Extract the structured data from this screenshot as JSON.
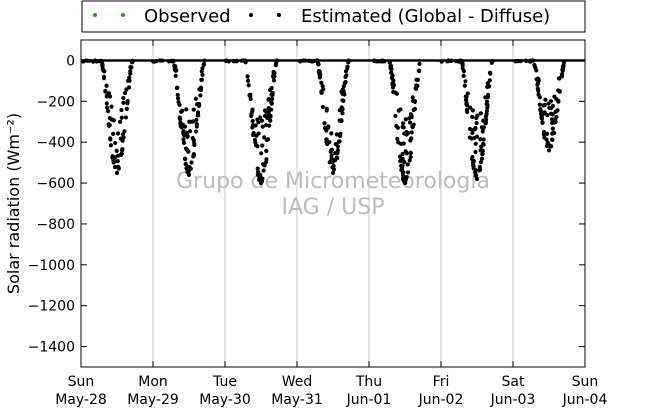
{
  "chart_data": {
    "type": "scatter",
    "ylabel": "Solar radiation (Wm⁻²)",
    "ylim": [
      -1500,
      100
    ],
    "yticks": [
      0,
      -200,
      -400,
      -600,
      -800,
      -1000,
      -1200,
      -1400
    ],
    "xlim": [
      "2017-05-28",
      "2017-06-04"
    ],
    "xtick_labels": [
      [
        "Sun",
        "May-28"
      ],
      [
        "Mon",
        "May-29"
      ],
      [
        "Tue",
        "May-30"
      ],
      [
        "Wed",
        "May-31"
      ],
      [
        "Thu",
        "Jun-01"
      ],
      [
        "Fri",
        "Jun-02"
      ],
      [
        "Sat",
        "Jun-03"
      ],
      [
        "Sun",
        "Jun-04"
      ]
    ],
    "grid": "x",
    "legend": {
      "placement": "top",
      "entries": [
        "Observed",
        "Estimated (Global - Diffuse)"
      ]
    },
    "watermark": [
      "Grupo de Micrometeorologia",
      "IAG / USP"
    ],
    "colors": {
      "observed": "#2ca02c",
      "estimated": "#000000",
      "watermark": "#bbbbbb",
      "grid": "#cccccc"
    },
    "series": [
      {
        "name": "Observed",
        "color": "#2ca02c",
        "points": []
      },
      {
        "name": "Estimated (Global - Diffuse)",
        "color": "#000000",
        "daily_nadir_W_m2": [
          -550,
          -560,
          -600,
          -550,
          -600,
          -580,
          -440
        ]
      }
    ]
  }
}
